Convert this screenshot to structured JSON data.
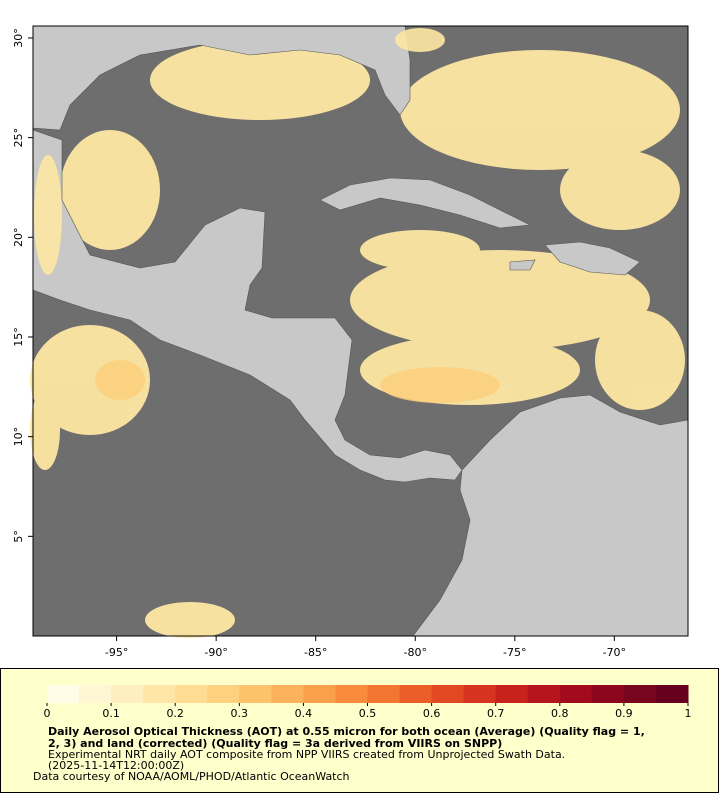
{
  "map": {
    "xlim": [
      -99.2,
      -66.3
    ],
    "ylim": [
      0,
      30.6
    ],
    "xticks": [
      {
        "value": -95,
        "label": "-95°"
      },
      {
        "value": -90,
        "label": "-90°"
      },
      {
        "value": -85,
        "label": "-85°"
      },
      {
        "value": -80,
        "label": "-80°"
      },
      {
        "value": -75,
        "label": "-75°"
      },
      {
        "value": -70,
        "label": "-70°"
      }
    ],
    "yticks": [
      {
        "value": 5,
        "label": "5°"
      },
      {
        "value": 10,
        "label": "10°"
      },
      {
        "value": 15,
        "label": "15°"
      },
      {
        "value": 20,
        "label": "20°"
      },
      {
        "value": 25,
        "label": "25°"
      },
      {
        "value": 30,
        "label": "30°"
      }
    ]
  },
  "colorbar": {
    "lim": [
      0,
      1
    ],
    "ticks": [
      0,
      0.1,
      0.2,
      0.3,
      0.4,
      0.5,
      0.6,
      0.7,
      0.8,
      0.9,
      1
    ],
    "colors": [
      "#fffde8",
      "#fff6d4",
      "#ffefc0",
      "#ffe6a8",
      "#fedc94",
      "#fed080",
      "#fdc26c",
      "#fcb25a",
      "#fba04a",
      "#f98c3c",
      "#f47530",
      "#ec5e28",
      "#e24822",
      "#d6341e",
      "#c8221c",
      "#b6141c",
      "#a20a1e",
      "#8c061e",
      "#78041e",
      "#66001e"
    ]
  },
  "caption": {
    "lines": [
      "Daily Aerosol Optical Thickness (AOT) at 0.55 micron for both ocean (Average) (Quality flag = 1,",
      "2, 3) and land (corrected) (Quality flag = 3a derived from VIIRS on SNPP)"
    ],
    "notes": [
      "Experimental NRT daily AOT composite from NPP VIIRS created from Unprojected Swath Data.",
      "(2025-11-14T12:00:00Z)",
      "Data courtesy of NOAA/AOML/PHOD/Atlantic OceanWatch"
    ]
  }
}
